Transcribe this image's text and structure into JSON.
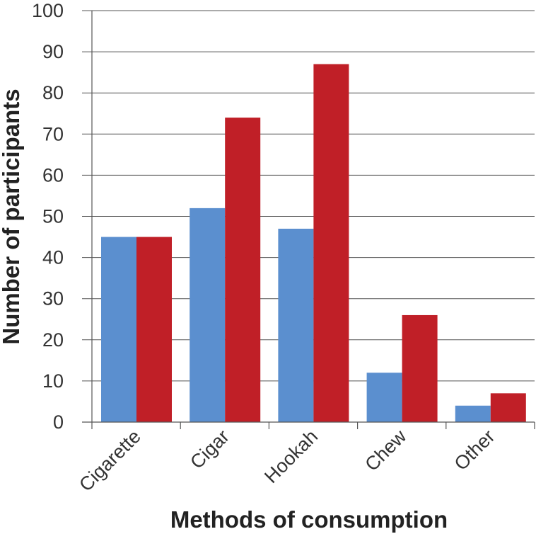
{
  "chart_data": {
    "type": "bar",
    "title": "",
    "xlabel": "Methods of consumption",
    "ylabel": "Number of participants",
    "categories": [
      "Cigarette",
      "Cigar",
      "Hookah",
      "Chew",
      "Other"
    ],
    "series": [
      {
        "values": [
          45,
          52,
          47,
          12,
          4
        ],
        "color": "#5b8fcf"
      },
      {
        "values": [
          45,
          74,
          87,
          26,
          7
        ],
        "color": "#c01f27"
      }
    ],
    "ylim": [
      0,
      100
    ],
    "yticks": [
      0,
      10,
      20,
      30,
      40,
      50,
      60,
      70,
      80,
      90,
      100
    ],
    "grid": true,
    "legend": "none"
  }
}
